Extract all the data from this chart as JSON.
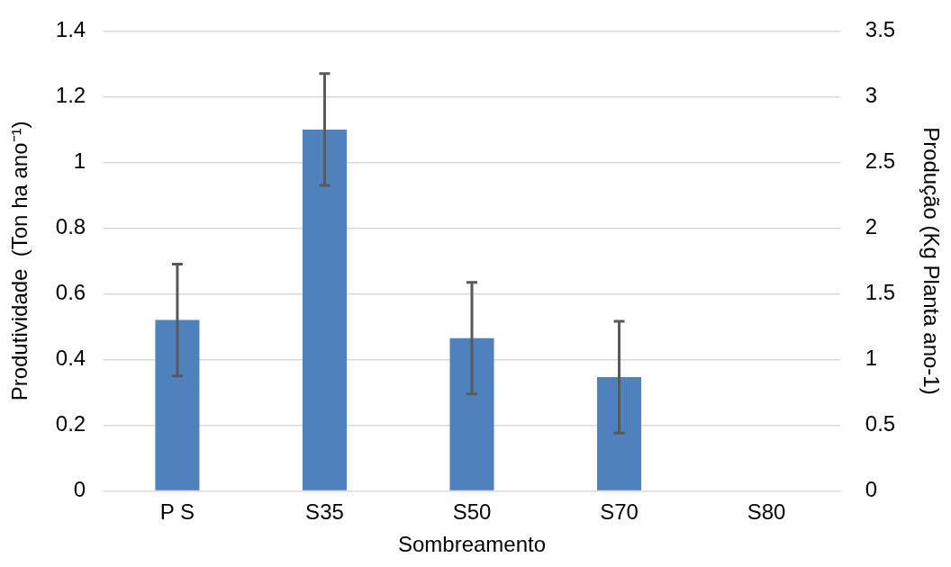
{
  "chart_data": {
    "type": "bar",
    "xlabel": "Sombreamento",
    "ylabel": "Produtividade  (Ton ha ano⁻¹)",
    "y2label": "Produção (Kg Planta ano-1)",
    "categories": [
      "P S",
      "S35",
      "S50",
      "S70",
      "S80"
    ],
    "values": [
      0.52,
      1.1,
      0.465,
      0.346,
      0
    ],
    "errors": [
      0.17,
      0.17,
      0.17,
      0.17,
      null
    ],
    "color": "#4f81bd",
    "ylim": [
      0,
      1.4
    ],
    "yticks": [
      0,
      0.2,
      0.4,
      0.6,
      0.8,
      1,
      1.2,
      1.4
    ],
    "y2lim": [
      0,
      3.5
    ],
    "y2ticks": [
      0,
      0.5,
      1,
      1.5,
      2,
      2.5,
      3,
      3.5
    ],
    "grid": "y",
    "legend": false
  }
}
